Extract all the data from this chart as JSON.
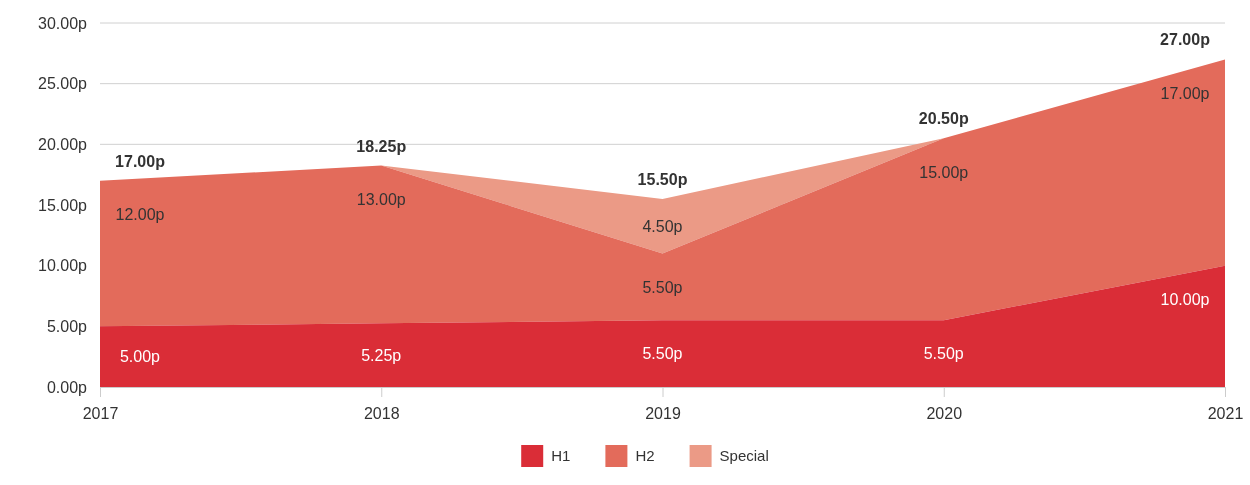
{
  "chart_data": {
    "type": "area",
    "stacked": true,
    "categories": [
      "2017",
      "2018",
      "2019",
      "2020",
      "2021"
    ],
    "series": [
      {
        "name": "H1",
        "color": "#da2d37",
        "values": [
          5,
          5.25,
          5.5,
          5.5,
          10
        ],
        "value_labels": [
          "5.00p",
          "5.25p",
          "5.50p",
          "5.50p",
          "10.00p"
        ]
      },
      {
        "name": "H2",
        "color": "#e36b5b",
        "values": [
          12,
          13,
          5.5,
          15,
          17
        ],
        "value_labels": [
          "12.00p",
          "13.00p",
          "5.50p",
          "15.00p",
          "17.00p"
        ]
      },
      {
        "name": "Special",
        "color": "#eb9a86",
        "values": [
          0,
          0,
          4.5,
          0,
          0
        ],
        "value_labels": [
          null,
          null,
          "4.50p",
          null,
          null
        ]
      }
    ],
    "totals": [
      "17.00p",
      "18.25p",
      "15.50p",
      "20.50p",
      "27.00p"
    ],
    "ylim": [
      0,
      30
    ],
    "yticks": [
      {
        "value": 0,
        "label": "0.00p"
      },
      {
        "value": 5,
        "label": "5.00p"
      },
      {
        "value": 10,
        "label": "10.00p"
      },
      {
        "value": 15,
        "label": "15.00p"
      },
      {
        "value": 20,
        "label": "20.00p"
      },
      {
        "value": 25,
        "label": "25.00p"
      },
      {
        "value": 30,
        "label": "30.00p"
      }
    ],
    "grid": "y",
    "legend": "bottom"
  }
}
